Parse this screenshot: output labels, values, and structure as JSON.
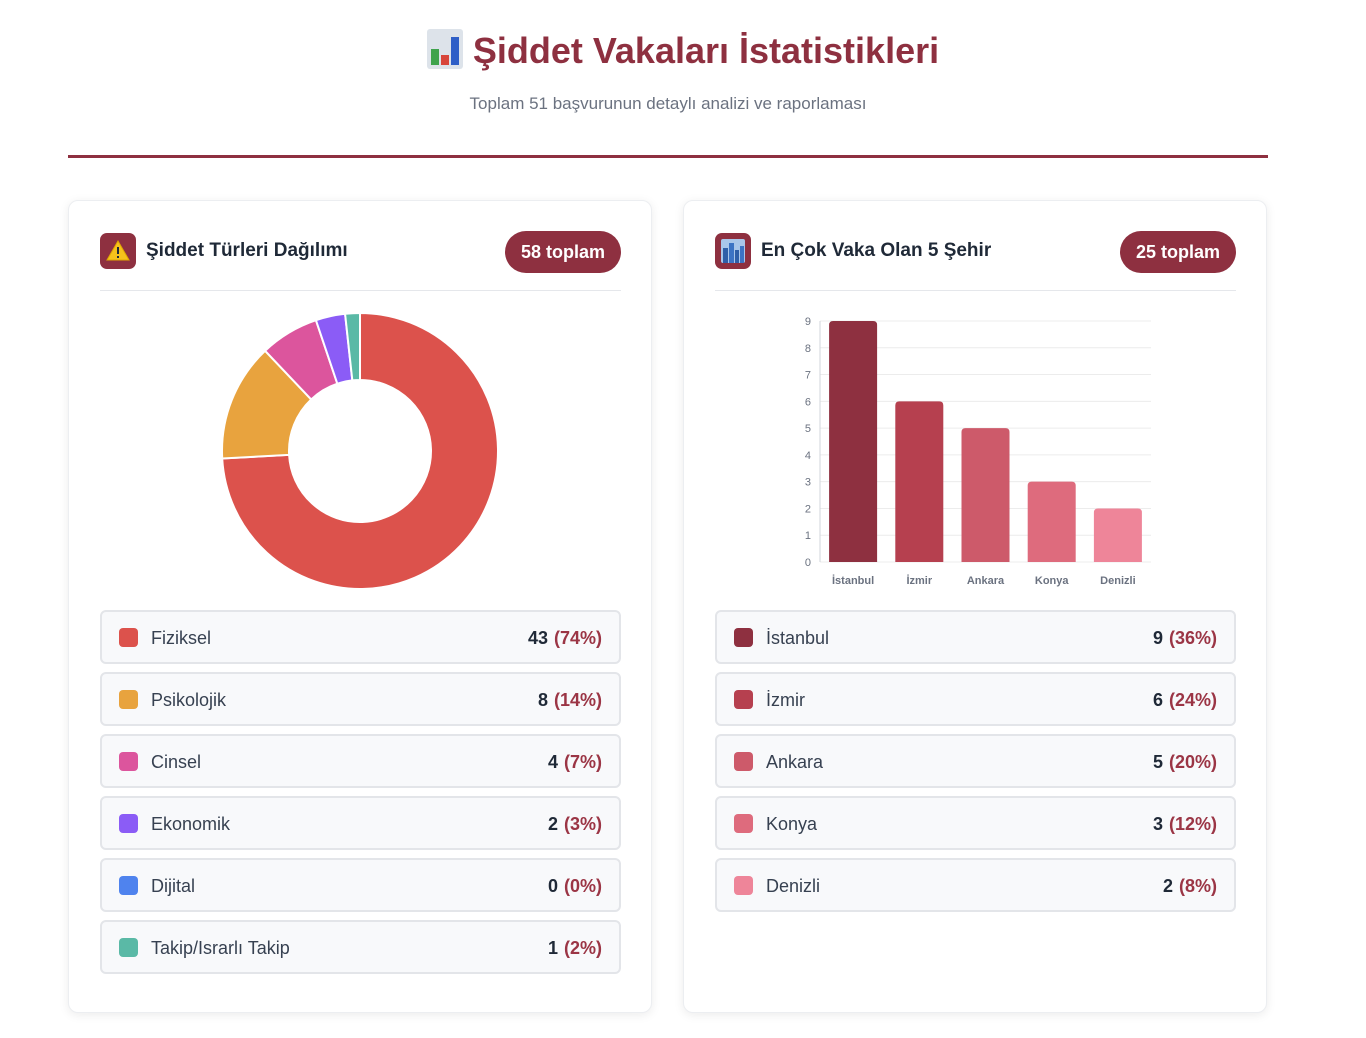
{
  "header": {
    "title": "Şiddet Vakaları İstatistikleri",
    "subtitle": "Toplam 51 başvurunun detaylı analizi ve raporlaması",
    "title_icon": "bar-chart-icon"
  },
  "colors": {
    "brand": "#8e3040"
  },
  "cards": {
    "types": {
      "title": "Şiddet Türleri Dağılımı",
      "icon": "warning-icon",
      "badge": "58 toplam",
      "items": [
        {
          "label": "Fiziksel",
          "count": "43",
          "pct": "(74%)",
          "color": "#dc524c"
        },
        {
          "label": "Psikolojik",
          "count": "8",
          "pct": "(14%)",
          "color": "#e8a33e"
        },
        {
          "label": "Cinsel",
          "count": "4",
          "pct": "(7%)",
          "color": "#dc559d"
        },
        {
          "label": "Ekonomik",
          "count": "2",
          "pct": "(3%)",
          "color": "#8b5cf6"
        },
        {
          "label": "Dijital",
          "count": "0",
          "pct": "(0%)",
          "color": "#4f83ee"
        },
        {
          "label": "Takip/Israrlı Takip",
          "count": "1",
          "pct": "(2%)",
          "color": "#5ab9a6"
        }
      ]
    },
    "cities": {
      "title": "En Çok Vaka Olan 5 Şehir",
      "icon": "city-icon",
      "badge": "25 toplam",
      "items": [
        {
          "label": "İstanbul",
          "count": "9",
          "pct": "(36%)",
          "color": "#8e3040"
        },
        {
          "label": "İzmir",
          "count": "6",
          "pct": "(24%)",
          "color": "#b6404f"
        },
        {
          "label": "Ankara",
          "count": "5",
          "pct": "(20%)",
          "color": "#cd5a6a"
        },
        {
          "label": "Konya",
          "count": "3",
          "pct": "(12%)",
          "color": "#de6b7d"
        },
        {
          "label": "Denizli",
          "count": "2",
          "pct": "(8%)",
          "color": "#ee8599"
        }
      ]
    }
  },
  "chart_data": [
    {
      "type": "pie",
      "variant": "doughnut",
      "categories": [
        "Fiziksel",
        "Psikolojik",
        "Cinsel",
        "Ekonomik",
        "Dijital",
        "Takip/Israrlı Takip"
      ],
      "values": [
        43,
        8,
        4,
        2,
        0,
        1
      ],
      "colors": [
        "#dc524c",
        "#e8a33e",
        "#dc559d",
        "#8b5cf6",
        "#4f83ee",
        "#5ab9a6"
      ]
    },
    {
      "type": "bar",
      "categories": [
        "İstanbul",
        "İzmir",
        "Ankara",
        "Konya",
        "Denizli"
      ],
      "values": [
        9,
        6,
        5,
        3,
        2
      ],
      "colors": [
        "#8e3040",
        "#b6404f",
        "#cd5a6a",
        "#de6b7d",
        "#ee8599"
      ],
      "ylim": [
        0,
        9
      ],
      "yticks": [
        "0",
        "1",
        "2",
        "3",
        "4",
        "5",
        "6",
        "7",
        "8",
        "9"
      ],
      "grid": true,
      "legend": "none"
    }
  ]
}
